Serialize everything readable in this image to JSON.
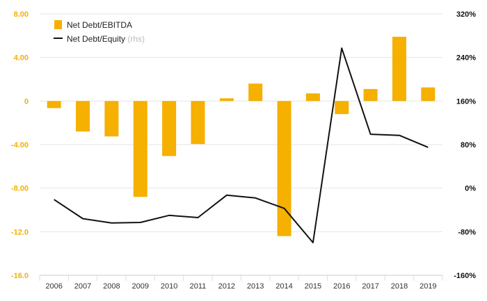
{
  "chart_data": {
    "type": "bar",
    "categories": [
      "2006",
      "2007",
      "2008",
      "2009",
      "2010",
      "2011",
      "2012",
      "2013",
      "2014",
      "2015",
      "2016",
      "2017",
      "2018",
      "2019"
    ],
    "series": [
      {
        "name": "Net Debt/EBITDA",
        "type": "bar",
        "axis": "left",
        "color": "#f5b000",
        "values": [
          -0.65,
          -2.8,
          -3.25,
          -8.8,
          -5.05,
          -3.95,
          0.25,
          1.6,
          -12.4,
          0.7,
          -1.2,
          1.1,
          5.9,
          1.25
        ]
      },
      {
        "name": "Net Debt/Equity",
        "name_suffix": "(rhs)",
        "type": "line",
        "axis": "right",
        "color": "#111111",
        "values": [
          -21,
          -56,
          -64,
          -63,
          -50,
          -54,
          -13,
          -18,
          -37,
          -100,
          257,
          99,
          97,
          75
        ]
      }
    ],
    "yleft": {
      "lim": [
        -16,
        8
      ],
      "ticks": [
        8,
        4,
        0,
        -4,
        -8,
        -12,
        -16
      ],
      "tick_labels": [
        "8.00",
        "4.00",
        "0",
        "-4.00",
        "-8.00",
        "-12.0",
        "-16.0"
      ]
    },
    "yright": {
      "lim": [
        -160,
        320
      ],
      "ticks": [
        320,
        240,
        160,
        80,
        0,
        -80,
        -160
      ],
      "tick_labels": [
        "320%",
        "240%",
        "160%",
        "80%",
        "0%",
        "-80%",
        "-160%"
      ]
    },
    "grid": true,
    "legend": "top-left"
  }
}
